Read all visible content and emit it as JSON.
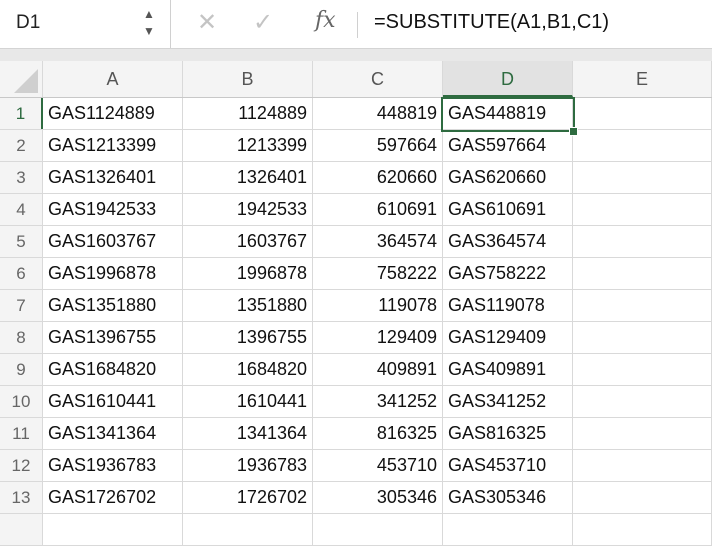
{
  "formula_bar": {
    "name_box": "D1",
    "formula": "=SUBSTITUTE(A1,B1,C1)",
    "fx_label": "fx",
    "cancel_icon": "x-icon",
    "confirm_icon": "check-icon"
  },
  "columns": [
    "A",
    "B",
    "C",
    "D",
    "E"
  ],
  "selected_cell": "D1",
  "accent_color": "#2e6b40",
  "rows": [
    {
      "n": "1",
      "a": "GAS1124889",
      "b": "1124889",
      "c": "448819",
      "d": "GAS448819"
    },
    {
      "n": "2",
      "a": "GAS1213399",
      "b": "1213399",
      "c": "597664",
      "d": "GAS597664"
    },
    {
      "n": "3",
      "a": "GAS1326401",
      "b": "1326401",
      "c": "620660",
      "d": "GAS620660"
    },
    {
      "n": "4",
      "a": "GAS1942533",
      "b": "1942533",
      "c": "610691",
      "d": "GAS610691"
    },
    {
      "n": "5",
      "a": "GAS1603767",
      "b": "1603767",
      "c": "364574",
      "d": "GAS364574"
    },
    {
      "n": "6",
      "a": "GAS1996878",
      "b": "1996878",
      "c": "758222",
      "d": "GAS758222"
    },
    {
      "n": "7",
      "a": "GAS1351880",
      "b": "1351880",
      "c": "119078",
      "d": "GAS119078"
    },
    {
      "n": "8",
      "a": "GAS1396755",
      "b": "1396755",
      "c": "129409",
      "d": "GAS129409"
    },
    {
      "n": "9",
      "a": "GAS1684820",
      "b": "1684820",
      "c": "409891",
      "d": "GAS409891"
    },
    {
      "n": "10",
      "a": "GAS1610441",
      "b": "1610441",
      "c": "341252",
      "d": "GAS341252"
    },
    {
      "n": "11",
      "a": "GAS1341364",
      "b": "1341364",
      "c": "816325",
      "d": "GAS816325"
    },
    {
      "n": "12",
      "a": "GAS1936783",
      "b": "1936783",
      "c": "453710",
      "d": "GAS453710"
    },
    {
      "n": "13",
      "a": "GAS1726702",
      "b": "1726702",
      "c": "305346",
      "d": "GAS305346"
    }
  ]
}
